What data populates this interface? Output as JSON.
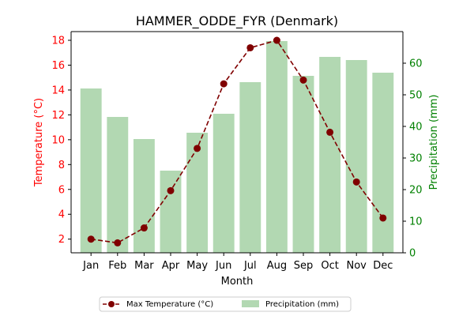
{
  "chart_data": {
    "type": "bar+line",
    "title": "HAMMER_ODDE_FYR (Denmark)",
    "xlabel": "Month",
    "categories": [
      "Jan",
      "Feb",
      "Mar",
      "Apr",
      "May",
      "Jun",
      "Jul",
      "Aug",
      "Sep",
      "Oct",
      "Nov",
      "Dec"
    ],
    "left_axis": {
      "label": "Temperature (°C)",
      "color": "#ff0000",
      "ylim": [
        0.9,
        18.7
      ],
      "ticks": [
        2,
        4,
        6,
        8,
        10,
        12,
        14,
        16,
        18
      ]
    },
    "right_axis": {
      "label": "Precipitation (mm)",
      "color": "#008000",
      "ylim": [
        0,
        70
      ],
      "ticks": [
        0,
        10,
        20,
        30,
        40,
        50,
        60
      ]
    },
    "series": [
      {
        "name": "Max Temperature (°C)",
        "type": "line",
        "axis": "left",
        "color": "#800000",
        "line_style": "dashed",
        "marker": "circle",
        "values": [
          2.0,
          1.7,
          2.9,
          5.9,
          9.3,
          14.5,
          17.4,
          18.0,
          14.8,
          10.6,
          6.6,
          3.7
        ]
      },
      {
        "name": "Precipitation (mm)",
        "type": "bar",
        "axis": "right",
        "color": "#b2d8b2",
        "values": [
          52,
          43,
          36,
          26,
          38,
          44,
          54,
          67,
          56,
          62,
          61,
          57
        ]
      }
    ],
    "legend": {
      "placement": "bottom-center",
      "columns": 2
    }
  }
}
